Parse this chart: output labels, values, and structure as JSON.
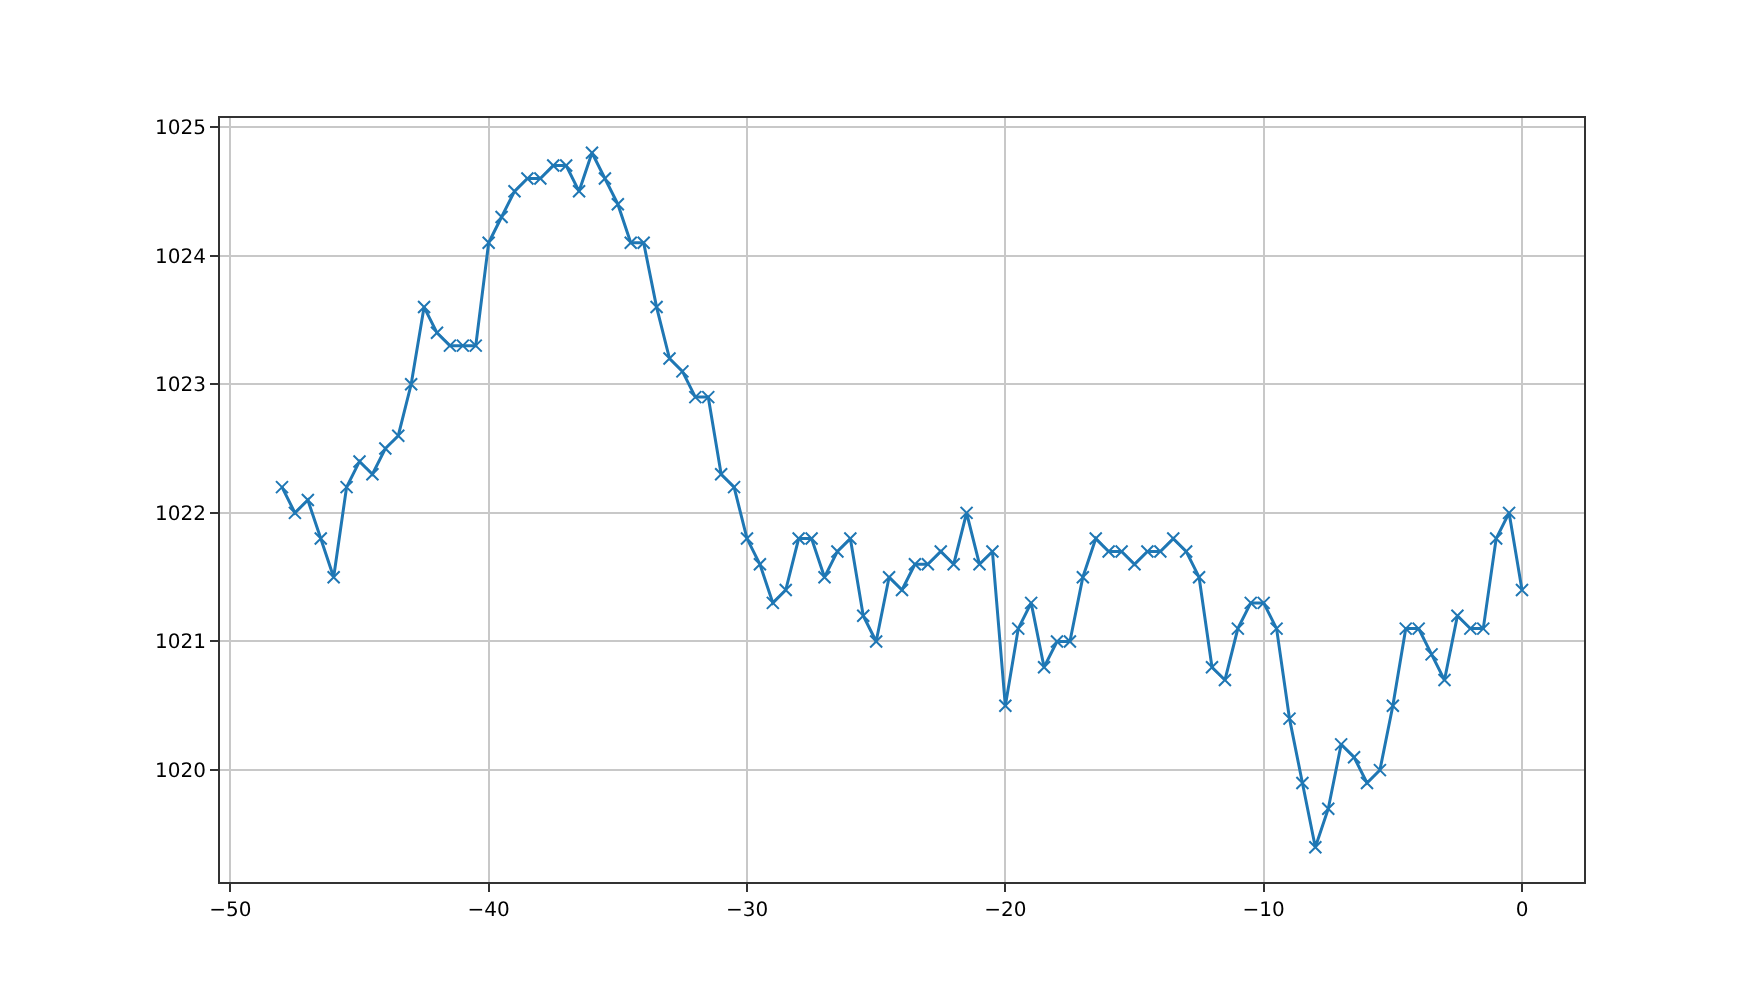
{
  "chart_data": {
    "type": "line",
    "marker": "cross",
    "line_style": "solid",
    "grid": true,
    "x": [
      -48,
      -47.5,
      -47,
      -46.5,
      -46,
      -45.5,
      -45,
      -44.5,
      -44,
      -43.5,
      -43,
      -42.5,
      -42,
      -41.5,
      -41,
      -40.5,
      -40,
      -39.5,
      -39,
      -38.5,
      -38,
      -37.5,
      -37,
      -36.5,
      -36,
      -35.5,
      -35,
      -34.5,
      -34,
      -33.5,
      -33,
      -32.5,
      -32,
      -31.5,
      -31,
      -30.5,
      -30,
      -29.5,
      -29,
      -28.5,
      -28,
      -27.5,
      -27,
      -26.5,
      -26,
      -25.5,
      -25,
      -24.5,
      -24,
      -23.5,
      -23,
      -22.5,
      -22,
      -21.5,
      -21,
      -20.5,
      -20,
      -19.5,
      -19,
      -18.5,
      -18,
      -17.5,
      -17,
      -16.5,
      -16,
      -15.5,
      -15,
      -14.5,
      -14,
      -13.5,
      -13,
      -12.5,
      -12,
      -11.5,
      -11,
      -10.5,
      -10,
      -9.5,
      -9,
      -8.5,
      -8,
      -7.5,
      -7,
      -6.5,
      -6,
      -5.5,
      -5,
      -4.5,
      -4,
      -3.5,
      -3,
      -2.5,
      -2,
      -1.5,
      -1,
      -0.5,
      0
    ],
    "series": [
      {
        "color": "#1f77b4",
        "values": [
          1022.2,
          1022.0,
          1022.1,
          1021.8,
          1021.5,
          1022.2,
          1022.4,
          1022.3,
          1022.5,
          1022.6,
          1023.0,
          1023.6,
          1023.4,
          1023.3,
          1023.3,
          1023.3,
          1024.1,
          1024.3,
          1024.5,
          1024.6,
          1024.6,
          1024.7,
          1024.7,
          1024.5,
          1024.8,
          1024.6,
          1024.4,
          1024.1,
          1024.1,
          1023.6,
          1023.2,
          1023.1,
          1022.9,
          1022.9,
          1022.3,
          1022.2,
          1021.8,
          1021.6,
          1021.3,
          1021.4,
          1021.8,
          1021.8,
          1021.5,
          1021.7,
          1021.8,
          1021.2,
          1021.0,
          1021.5,
          1021.4,
          1021.6,
          1021.6,
          1021.7,
          1021.6,
          1022.0,
          1021.6,
          1021.7,
          1020.5,
          1021.1,
          1021.3,
          1020.8,
          1021.0,
          1021.0,
          1021.5,
          1021.8,
          1021.7,
          1021.7,
          1021.6,
          1021.7,
          1021.7,
          1021.8,
          1021.7,
          1021.5,
          1020.8,
          1020.7,
          1021.1,
          1021.3,
          1021.3,
          1021.1,
          1020.4,
          1019.9,
          1019.4,
          1019.7,
          1020.2,
          1020.1,
          1019.9,
          1020.0,
          1020.5,
          1021.1,
          1021.1,
          1020.9,
          1020.7,
          1021.2,
          1021.1,
          1021.1,
          1021.8,
          1022.0,
          1021.4
        ]
      }
    ],
    "xlim": [
      -50.4,
      2.4
    ],
    "ylim": [
      1019.13,
      1025.07
    ],
    "xticks": [
      -50,
      -40,
      -30,
      -20,
      -10,
      0
    ],
    "yticks": [
      1020,
      1021,
      1022,
      1023,
      1024,
      1025
    ]
  }
}
